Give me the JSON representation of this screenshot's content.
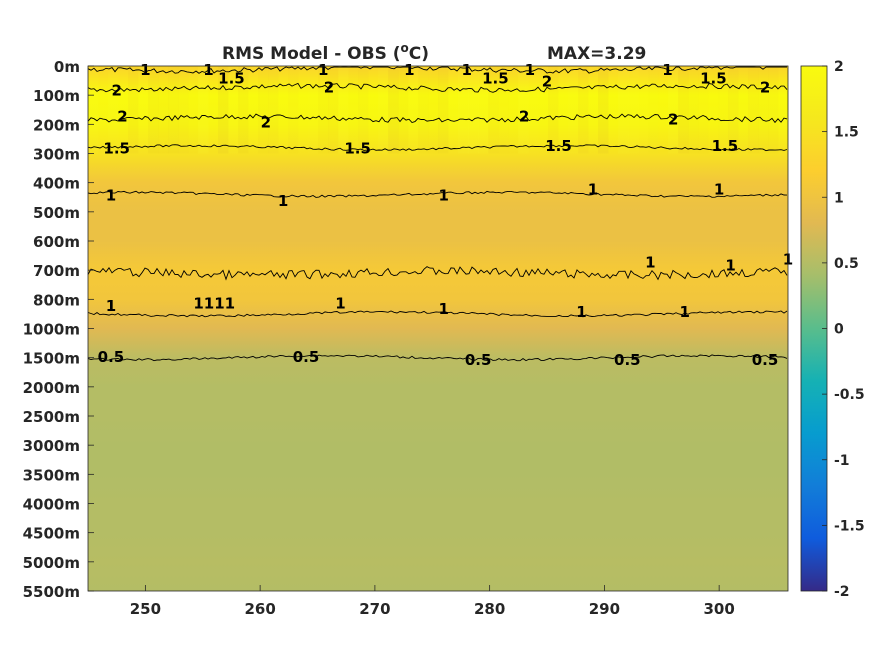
{
  "chart_data": {
    "type": "heatmap",
    "title": "RMS Model - OBS (",
    "title_super": "o",
    "title_unit": "C)",
    "max_label": "MAX=3.29",
    "xlabel": "",
    "ylabel": "",
    "x_ticks": [
      250,
      260,
      270,
      280,
      290,
      300
    ],
    "x_tick_labels": [
      "250",
      "260",
      "270",
      "280",
      "290",
      "300"
    ],
    "xlim": [
      245,
      306
    ],
    "y_tick_labels": [
      "0m",
      "100m",
      "200m",
      "300m",
      "400m",
      "500m",
      "600m",
      "700m",
      "800m",
      "1000m",
      "1500m",
      "2000m",
      "2500m",
      "3000m",
      "3500m",
      "4000m",
      "4500m",
      "5000m",
      "5500m"
    ],
    "colorbar": {
      "colormap": "parula",
      "range": [
        -2,
        2
      ],
      "ticks": [
        2,
        1.5,
        1,
        0.5,
        0,
        -0.5,
        -1,
        -1.5,
        -2
      ],
      "tick_labels": [
        "2",
        "1.5",
        "1",
        "0.5",
        "0",
        "-0.5",
        "-1",
        "-1.5",
        "-2"
      ]
    },
    "depth_profile": {
      "depths": [
        "0m",
        "100m",
        "200m",
        "300m",
        "400m",
        "500m",
        "600m",
        "700m",
        "800m",
        "1000m",
        "1500m",
        "2000m",
        "2500m",
        "3000m",
        "3500m",
        "4000m",
        "4500m",
        "5000m",
        "5500m"
      ],
      "values": [
        1.3,
        2.0,
        1.9,
        1.5,
        1.05,
        0.95,
        0.95,
        1.1,
        1.05,
        0.8,
        0.55,
        0.5,
        0.5,
        0.48,
        0.48,
        0.5,
        0.5,
        0.52,
        0.5
      ]
    },
    "contours": [
      {
        "level": "1",
        "depth_index": 0.1
      },
      {
        "level": "2",
        "depth_index": 0.75
      },
      {
        "level": "2",
        "depth_index": 1.8
      },
      {
        "level": "1.5",
        "depth_index": 2.8
      },
      {
        "level": "1",
        "depth_index": 4.4
      },
      {
        "level": "1",
        "depth_index": 7.1
      },
      {
        "level": "1",
        "depth_index": 8.5
      },
      {
        "level": "0.5",
        "depth_index": 10.0
      }
    ],
    "contour_labels": [
      {
        "text": "1",
        "x": 250,
        "depth_index": 0.1
      },
      {
        "text": "1",
        "x": 255.5,
        "depth_index": 0.1
      },
      {
        "text": "1.5",
        "x": 257.5,
        "depth_index": 0.4
      },
      {
        "text": "1",
        "x": 265.5,
        "depth_index": 0.1
      },
      {
        "text": "2",
        "x": 266,
        "depth_index": 0.7
      },
      {
        "text": "1",
        "x": 273,
        "depth_index": 0.1
      },
      {
        "text": "1",
        "x": 278,
        "depth_index": 0.1
      },
      {
        "text": "1.5",
        "x": 280.5,
        "depth_index": 0.4
      },
      {
        "text": "1",
        "x": 283.5,
        "depth_index": 0.1
      },
      {
        "text": "2",
        "x": 285,
        "depth_index": 0.5
      },
      {
        "text": "1",
        "x": 295.5,
        "depth_index": 0.1
      },
      {
        "text": "1.5",
        "x": 299.5,
        "depth_index": 0.4
      },
      {
        "text": "2",
        "x": 304,
        "depth_index": 0.7
      },
      {
        "text": "2",
        "x": 247.5,
        "depth_index": 0.8
      },
      {
        "text": "2",
        "x": 248,
        "depth_index": 1.7
      },
      {
        "text": "2",
        "x": 260.5,
        "depth_index": 1.9
      },
      {
        "text": "2",
        "x": 283,
        "depth_index": 1.7
      },
      {
        "text": "2",
        "x": 296,
        "depth_index": 1.8
      },
      {
        "text": "1.5",
        "x": 247.5,
        "depth_index": 2.8
      },
      {
        "text": "1.5",
        "x": 268.5,
        "depth_index": 2.8
      },
      {
        "text": "1.5",
        "x": 286,
        "depth_index": 2.7
      },
      {
        "text": "1.5",
        "x": 300.5,
        "depth_index": 2.7
      },
      {
        "text": "1",
        "x": 247,
        "depth_index": 4.4
      },
      {
        "text": "1",
        "x": 262,
        "depth_index": 4.6
      },
      {
        "text": "1",
        "x": 276,
        "depth_index": 4.4
      },
      {
        "text": "1",
        "x": 289,
        "depth_index": 4.2
      },
      {
        "text": "1",
        "x": 300,
        "depth_index": 4.2
      },
      {
        "text": "1",
        "x": 294,
        "depth_index": 6.7
      },
      {
        "text": "1",
        "x": 301,
        "depth_index": 6.8
      },
      {
        "text": "1",
        "x": 306,
        "depth_index": 6.6
      },
      {
        "text": "1",
        "x": 247,
        "depth_index": 8.2
      },
      {
        "text": "1111",
        "x": 256,
        "depth_index": 8.1
      },
      {
        "text": "1",
        "x": 267,
        "depth_index": 8.1
      },
      {
        "text": "1",
        "x": 276,
        "depth_index": 8.3
      },
      {
        "text": "1",
        "x": 288,
        "depth_index": 8.4
      },
      {
        "text": "1",
        "x": 297,
        "depth_index": 8.4
      },
      {
        "text": "0.5",
        "x": 247,
        "depth_index": 9.95
      },
      {
        "text": "0.5",
        "x": 264,
        "depth_index": 9.95
      },
      {
        "text": "0.5",
        "x": 279,
        "depth_index": 10.05
      },
      {
        "text": "0.5",
        "x": 292,
        "depth_index": 10.05
      },
      {
        "text": "0.5",
        "x": 304,
        "depth_index": 10.05
      }
    ]
  }
}
